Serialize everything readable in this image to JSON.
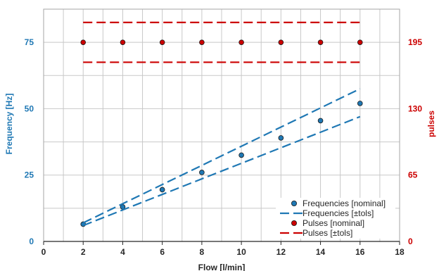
{
  "chart_data": {
    "type": "scatter",
    "xlabel": "Flow [l/min]",
    "ylabel_left": "Frequency [Hz]",
    "ylabel_right": "pulses",
    "xlim": [
      0,
      18
    ],
    "ylim_left": [
      0,
      87.5
    ],
    "ylim_right": [
      0,
      227.5
    ],
    "x_ticks": [
      0,
      2,
      4,
      6,
      8,
      10,
      12,
      14,
      16,
      18
    ],
    "y_ticks_left": [
      0,
      25,
      50,
      75
    ],
    "y_ticks_right": [
      0,
      65,
      130,
      195
    ],
    "grid": true,
    "legend_position": "bottom-right",
    "colors": {
      "frequency": "#1f78b4",
      "pulses": "#cc0000",
      "grid": "#c8c8c8"
    },
    "series": [
      {
        "name": "Frequencies [nominal]",
        "kind": "points",
        "axis": "left",
        "color": "#1f78b4",
        "x": [
          2,
          4,
          6,
          8,
          10,
          12,
          14,
          16
        ],
        "y": [
          6.5,
          13,
          19.5,
          26,
          32.5,
          39,
          45.5,
          52
        ]
      },
      {
        "name": "Frequencies [±tols]",
        "kind": "dashed-pair",
        "axis": "left",
        "color": "#1f78b4",
        "x": [
          2,
          16
        ],
        "upper": [
          7,
          57.5
        ],
        "lower": [
          6,
          47
        ]
      },
      {
        "name": "Pulses [nominal]",
        "kind": "points",
        "axis": "right",
        "color": "#cc0000",
        "x": [
          2,
          4,
          6,
          8,
          10,
          12,
          14,
          16
        ],
        "y": [
          195,
          195,
          195,
          195,
          195,
          195,
          195,
          195
        ]
      },
      {
        "name": "Pulses [±tols]",
        "kind": "dashed-pair",
        "axis": "right",
        "color": "#cc0000",
        "x": [
          2,
          16
        ],
        "upper": [
          214.5,
          214.5
        ],
        "lower": [
          175.5,
          175.5
        ]
      }
    ]
  }
}
